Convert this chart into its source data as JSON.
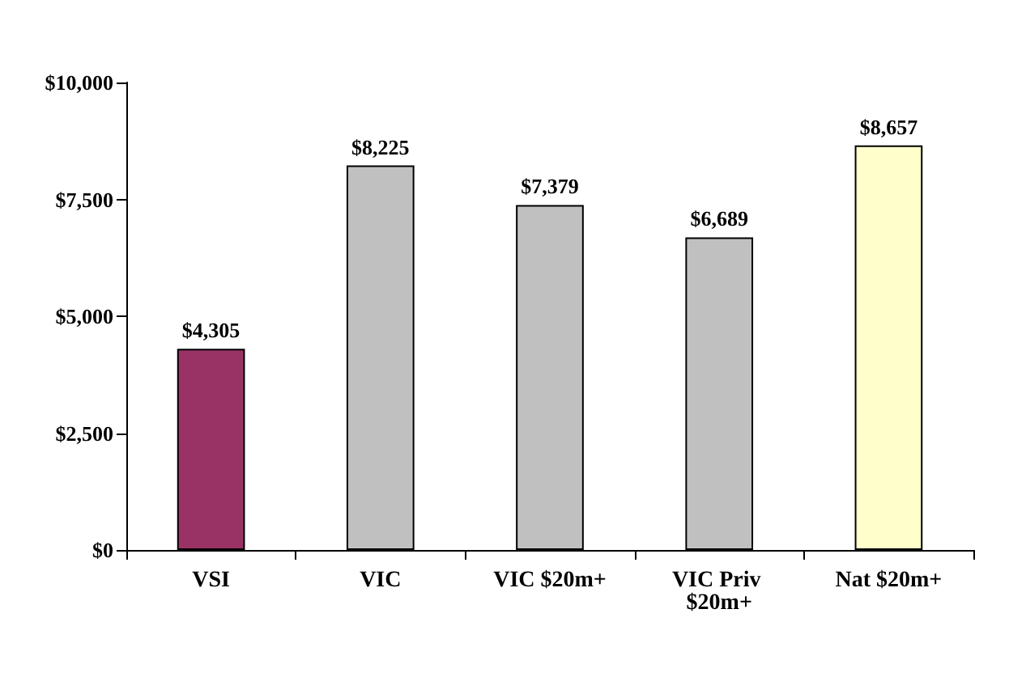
{
  "chart_data": {
    "type": "bar",
    "categories": [
      "VSI",
      "VIC",
      "VIC $20m+",
      "VIC Priv $20m+",
      "Nat $20m+"
    ],
    "values": [
      4305,
      8225,
      7379,
      6689,
      8657
    ],
    "colors": [
      "#993366",
      "#c0c0c0",
      "#c0c0c0",
      "#c0c0c0",
      "#ffffcc"
    ],
    "value_labels": [
      "$4,305",
      "$8,225",
      "$7,379",
      "$6,689",
      "$8,657"
    ],
    "ylim": [
      0,
      10000
    ],
    "yticks": [
      {
        "value": 0,
        "label": "$0"
      },
      {
        "value": 2500,
        "label": "$2,500"
      },
      {
        "value": 5000,
        "label": "$5,000"
      },
      {
        "value": 7500,
        "label": "$7,500"
      },
      {
        "value": 10000,
        "label": "$10,000"
      }
    ],
    "grid": false
  }
}
